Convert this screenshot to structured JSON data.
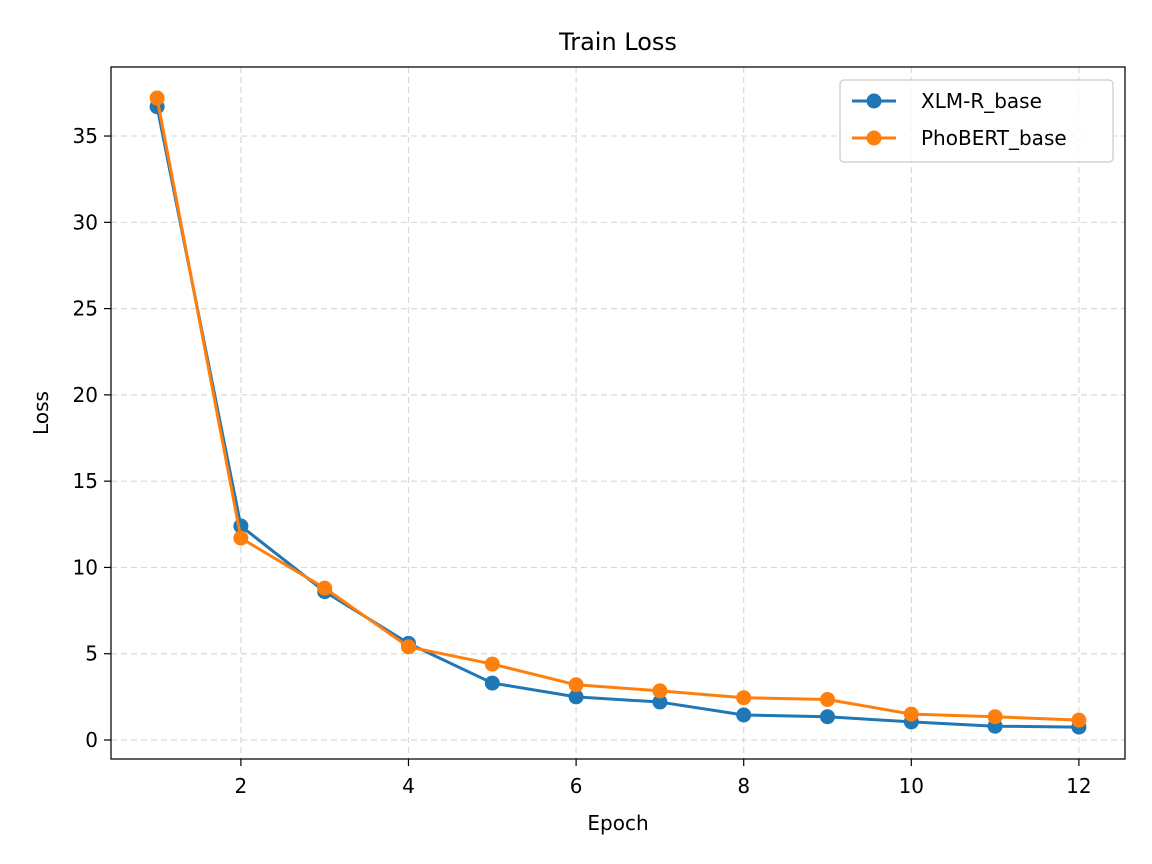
{
  "chart_data": {
    "type": "line",
    "title": "Train Loss",
    "xlabel": "Epoch",
    "ylabel": "Loss",
    "x": [
      1,
      2,
      3,
      4,
      5,
      6,
      7,
      8,
      9,
      10,
      11,
      12
    ],
    "xticks": [
      2,
      4,
      6,
      8,
      10,
      12
    ],
    "yticks": [
      0,
      5,
      10,
      15,
      20,
      25,
      30,
      35
    ],
    "xlim": [
      0.45,
      12.55
    ],
    "ylim": [
      -1.1,
      39.0
    ],
    "grid": true,
    "legend_position": "top-right",
    "series": [
      {
        "name": "XLM-R_base",
        "color": "#1f77b4",
        "values": [
          36.7,
          12.4,
          8.6,
          5.6,
          3.3,
          2.5,
          2.2,
          1.45,
          1.35,
          1.05,
          0.8,
          0.75
        ]
      },
      {
        "name": "PhoBERT_base",
        "color": "#ff7f0e",
        "values": [
          37.2,
          11.7,
          8.8,
          5.4,
          4.4,
          3.2,
          2.85,
          2.45,
          2.35,
          1.5,
          1.35,
          1.15
        ]
      }
    ]
  }
}
